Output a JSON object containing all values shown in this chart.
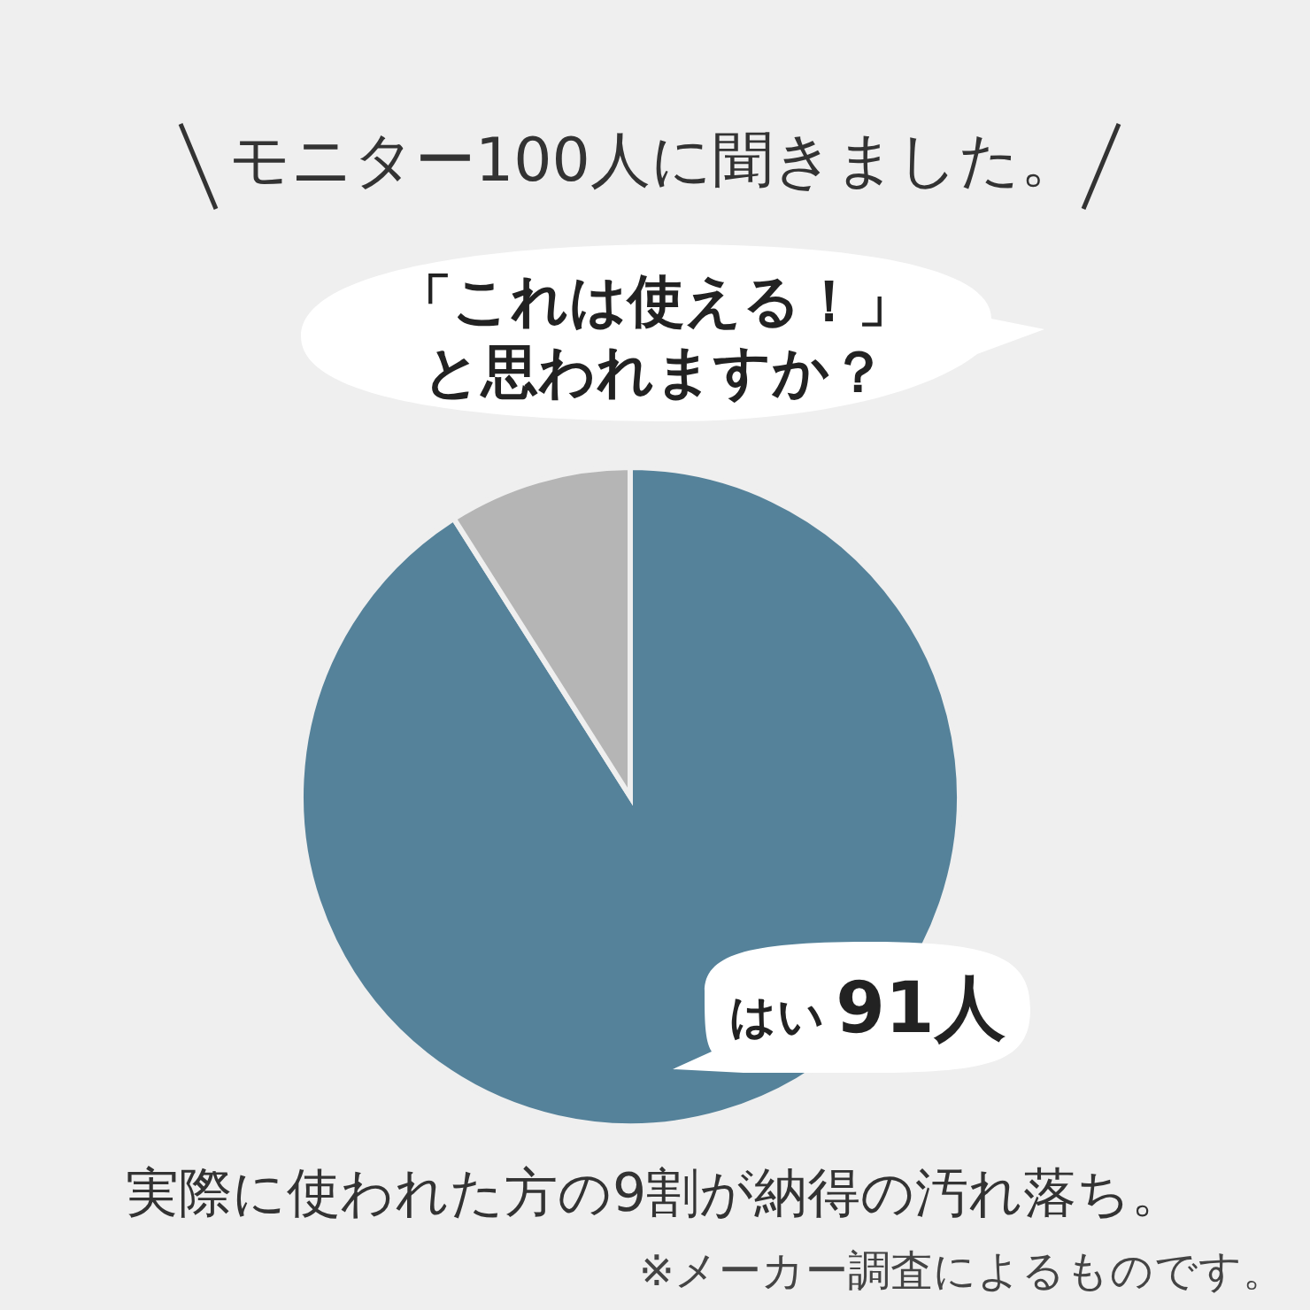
{
  "chart_data": {
    "type": "pie",
    "title": "モニター100人に聞きました。",
    "subtitle": "「これは使える！」と思われますか？",
    "categories": [
      "はい",
      null
    ],
    "values": [
      91,
      9
    ],
    "value_labels": [
      "91人",
      null
    ],
    "colors": [
      "#55829a",
      "#b5b5b5"
    ],
    "annotations": [
      "実際に使われた方の9割が納得の汚れ落ち。",
      "※メーカー調査によるものです。"
    ]
  }
}
